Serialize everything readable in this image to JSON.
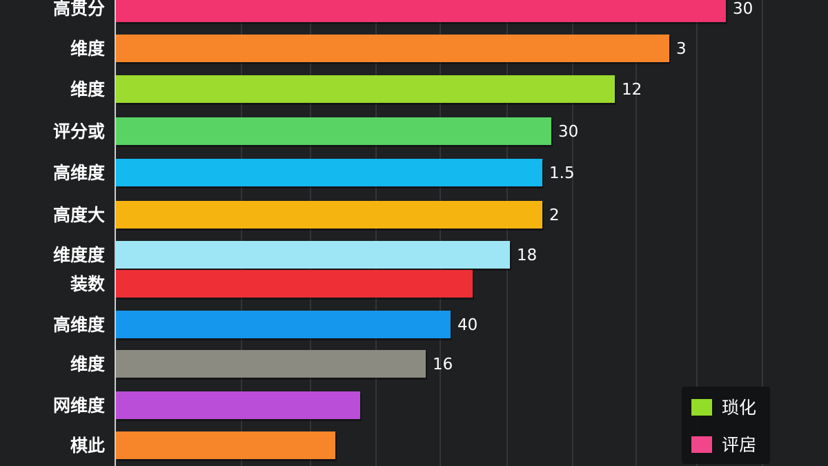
{
  "chart_data": {
    "type": "bar",
    "orientation": "horizontal",
    "grid": true,
    "legend_position": "bottom-right",
    "xlim": [
      0,
      1100
    ],
    "categories": [
      "高贯分",
      "维度",
      "维度",
      "评分或",
      "高维度",
      "高度大",
      "维度度",
      "装数",
      "高维度",
      "维度",
      "网维度",
      "棋此"
    ],
    "values": [
      1052,
      970,
      891,
      799,
      786,
      786,
      739,
      685,
      653,
      617,
      522,
      486
    ],
    "value_labels": [
      "30",
      "3",
      "12",
      "30",
      "1.5",
      "2",
      "18",
      "",
      "40",
      "16",
      "",
      ""
    ],
    "colors": [
      "#f2356f",
      "#f7862a",
      "#9ddb2e",
      "#58d364",
      "#13b9ef",
      "#f5b410",
      "#9ee6f5",
      "#ee2f36",
      "#1597ee",
      "#8b8b82",
      "#bb4ed8",
      "#f7862a"
    ],
    "legend": [
      {
        "label": "琐化",
        "color": "#93dd28"
      },
      {
        "label": "评扂",
        "color": "#f2468b"
      }
    ]
  }
}
